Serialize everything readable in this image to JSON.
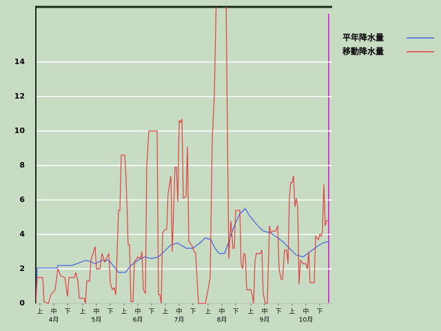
{
  "chart_data": {
    "type": "line",
    "xlim": [
      0,
      213
    ],
    "ylim": [
      0,
      17.2
    ],
    "yticks": [
      0,
      2,
      4,
      6,
      8,
      10,
      12,
      14
    ],
    "xticks": [
      {
        "value": 3,
        "label": "上"
      },
      {
        "value": 13,
        "label": "中"
      },
      {
        "value": 23,
        "label": "下"
      },
      {
        "value": 34,
        "label": "上"
      },
      {
        "value": 44,
        "label": "中"
      },
      {
        "value": 54,
        "label": "下"
      },
      {
        "value": 64,
        "label": "上"
      },
      {
        "value": 74,
        "label": "中"
      },
      {
        "value": 84,
        "label": "下"
      },
      {
        "value": 94,
        "label": "上"
      },
      {
        "value": 104,
        "label": "中"
      },
      {
        "value": 114,
        "label": "下"
      },
      {
        "value": 125,
        "label": "上"
      },
      {
        "value": 135,
        "label": "中"
      },
      {
        "value": 145,
        "label": "下"
      },
      {
        "value": 156,
        "label": "上"
      },
      {
        "value": 166,
        "label": "中"
      },
      {
        "value": 176,
        "label": "下"
      },
      {
        "value": 186,
        "label": "上"
      },
      {
        "value": 196,
        "label": "中"
      },
      {
        "value": 206,
        "label": "下"
      }
    ],
    "month_ticks": [
      {
        "value": 13,
        "label": "4月"
      },
      {
        "value": 44,
        "label": "5月"
      },
      {
        "value": 74,
        "label": "6月"
      },
      {
        "value": 104,
        "label": "7月"
      },
      {
        "value": 135,
        "label": "8月"
      },
      {
        "value": 166,
        "label": "9月"
      },
      {
        "value": 196,
        "label": "10月"
      }
    ],
    "grid": true,
    "series": [
      {
        "name": "平年降水量",
        "color": "#4060e0",
        "x": [
          0,
          1,
          15,
          16,
          26,
          33,
          36,
          39,
          43,
          48,
          53,
          56,
          60,
          65,
          69,
          74,
          79,
          84,
          89,
          93,
          98,
          103,
          109,
          114,
          119,
          123,
          127,
          130,
          133,
          137,
          140,
          144,
          148,
          152,
          155,
          160,
          165,
          170,
          174,
          179,
          184,
          189,
          194,
          199,
          204,
          208,
          213
        ],
        "values": [
          0,
          2.05,
          2.05,
          2.2,
          2.2,
          2.4,
          2.5,
          2.45,
          2.3,
          2.5,
          2.5,
          2.2,
          1.8,
          1.8,
          2.2,
          2.5,
          2.7,
          2.6,
          2.7,
          3.0,
          3.4,
          3.5,
          3.2,
          3.2,
          3.5,
          3.8,
          3.7,
          3.2,
          2.9,
          2.9,
          3.6,
          4.5,
          5.2,
          5.5,
          5.1,
          4.6,
          4.2,
          4.1,
          3.9,
          3.6,
          3.2,
          2.8,
          2.7,
          3.0,
          3.3,
          3.5,
          3.6
        ]
      },
      {
        "name": "移動降水量",
        "color": "#e04040",
        "x": [
          0,
          1,
          5,
          6,
          9,
          11,
          14,
          16,
          18,
          21,
          23,
          24,
          28,
          29,
          30.5,
          31.5,
          35,
          36,
          37,
          39,
          40,
          43,
          44,
          46.5,
          48,
          50,
          53,
          54,
          55.5,
          57,
          58,
          60,
          61,
          62,
          64.5,
          65.5,
          67,
          68,
          69,
          70.5,
          71.5,
          74,
          76,
          77,
          78,
          79.5,
          80.5,
          82,
          88,
          89,
          90,
          91,
          92,
          94,
          95,
          96,
          98,
          99,
          101,
          102,
          103,
          104,
          105,
          106,
          107,
          109,
          110,
          111,
          113,
          115,
          116,
          118,
          123,
          125,
          126.5,
          128,
          129.5,
          131,
          138,
          140,
          141.5,
          143,
          144,
          145,
          148,
          149,
          150,
          151,
          152,
          153,
          156,
          157,
          158,
          159,
          160,
          163,
          164,
          165,
          166.5,
          168,
          169.5,
          170.5,
          172,
          174,
          175.5,
          176.5,
          178,
          179,
          180.5,
          182,
          183,
          184,
          185,
          186,
          187,
          188,
          189,
          190,
          191,
          192,
          194,
          196,
          197,
          198,
          199,
          202,
          203,
          205,
          206,
          207,
          208,
          209,
          210,
          211,
          212
        ],
        "values": [
          0,
          1.5,
          1.5,
          0.1,
          0,
          0.5,
          0.8,
          2.0,
          1.6,
          1.5,
          0.4,
          1.5,
          1.5,
          1.8,
          1.3,
          0.3,
          0.3,
          0,
          1.3,
          1.3,
          2.5,
          3.3,
          2.0,
          2.0,
          2.9,
          2.4,
          2.9,
          1.2,
          0.8,
          0.9,
          0.5,
          5.4,
          5.4,
          8.6,
          8.6,
          7.2,
          3.4,
          3.4,
          0.1,
          0.1,
          2.4,
          2.7,
          2.6,
          3.0,
          0.8,
          0.6,
          8.0,
          10.0,
          10.0,
          0.5,
          0.5,
          0,
          4.1,
          4.3,
          4.3,
          6.4,
          7.4,
          3.0,
          7.9,
          7.9,
          5.9,
          10.6,
          10.5,
          10.7,
          6.1,
          6.2,
          9.1,
          3.6,
          3.4,
          3.0,
          2.9,
          0,
          0,
          0.8,
          1.5,
          9.5,
          12.0,
          18,
          18,
          2.6,
          4.8,
          3.2,
          3.2,
          5.4,
          5.4,
          2.3,
          2.0,
          2.9,
          2.8,
          0.8,
          0.8,
          0.5,
          0,
          2.4,
          2.9,
          2.9,
          3.1,
          0.6,
          0,
          0,
          4.5,
          4.1,
          4.2,
          4.2,
          4.5,
          2.0,
          1.4,
          1.4,
          3.1,
          3.1,
          2.3,
          6.2,
          7.0,
          7.0,
          7.4,
          5.6,
          6.1,
          5.6,
          1.1,
          2.5,
          2.3,
          2.3,
          2.0,
          3.0,
          1.2,
          1.2,
          3.9,
          3.7,
          4.0,
          3.9,
          4.2,
          6.9,
          4.5,
          4.8,
          4.8
        ]
      }
    ]
  }
}
